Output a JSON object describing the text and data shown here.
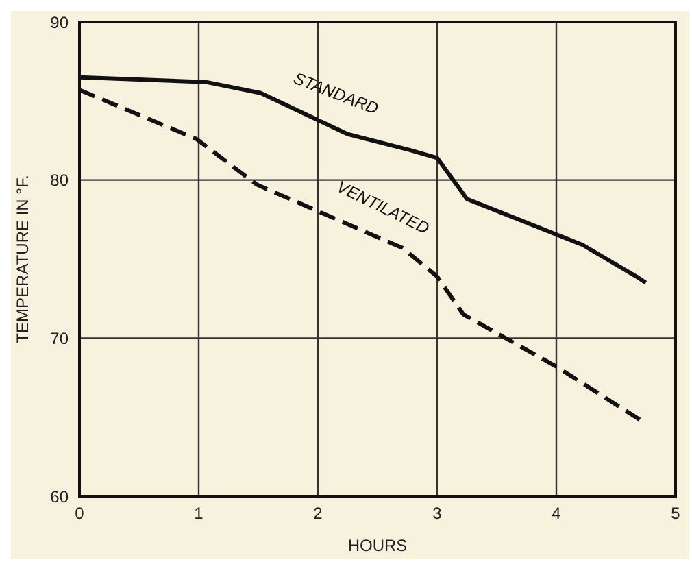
{
  "chart_data": {
    "type": "line",
    "xlabel": "HOURS",
    "ylabel": "TEMPERATURE IN °F.",
    "xlim": [
      0,
      5
    ],
    "ylim": [
      60,
      90
    ],
    "xticks": [
      0,
      1,
      2,
      3,
      4,
      5
    ],
    "yticks": [
      60,
      70,
      80,
      90
    ],
    "grid": true,
    "marker": "none",
    "series": [
      {
        "name": "STANDARD",
        "color": "#111111",
        "line_style": "solid",
        "x": [
          0,
          1.06,
          1.52,
          2.25,
          2.77,
          3,
          3.25,
          4.22,
          4.67,
          4.75
        ],
        "values": [
          86.5,
          86.2,
          85.5,
          82.9,
          81.9,
          81.4,
          78.8,
          75.9,
          73.9,
          73.5
        ]
      },
      {
        "name": "VENTILATED",
        "color": "#111111",
        "line_style": "dashed",
        "x": [
          0,
          0.98,
          1.49,
          2.71,
          3,
          3.22,
          4,
          4.75
        ],
        "values": [
          85.7,
          82.6,
          79.7,
          75.7,
          73.9,
          71.5,
          68.2,
          64.6
        ]
      }
    ]
  }
}
